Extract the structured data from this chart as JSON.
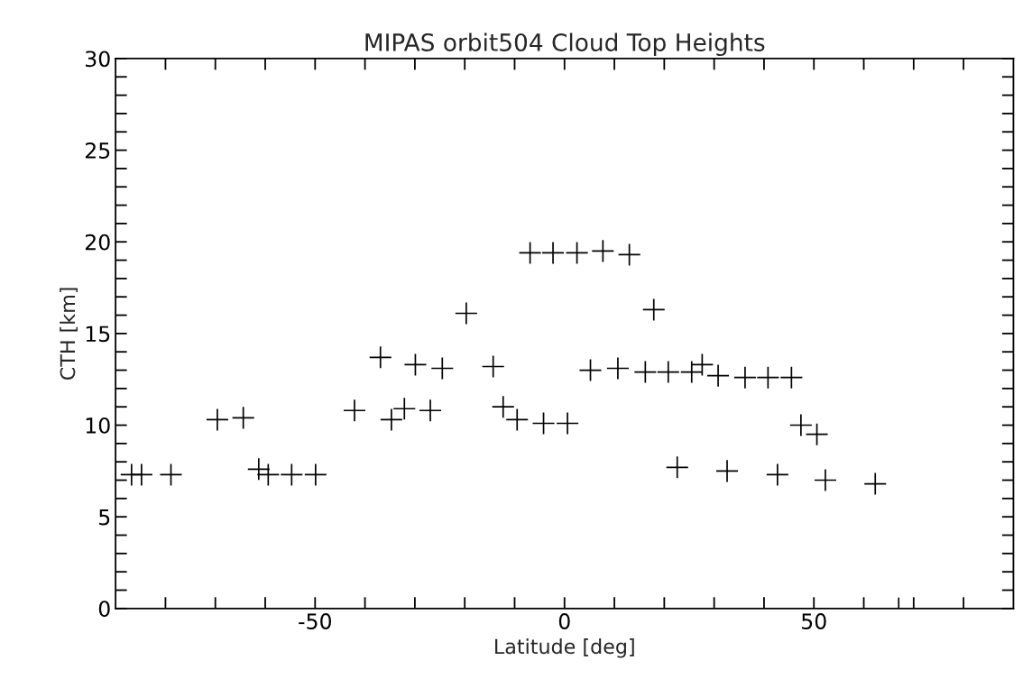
{
  "chart_data": {
    "type": "scatter",
    "title": "MIPAS orbit504 Cloud Top Heights",
    "xlabel": "Latitude [deg]",
    "ylabel": "CTH [km]",
    "marker": "cross",
    "xlim": [
      -90,
      90
    ],
    "xticks": [
      {
        "value": -80,
        "label": null
      },
      {
        "value": -70,
        "label": null
      },
      {
        "value": -60,
        "label": null
      },
      -50,
      {
        "value": -40,
        "label": null
      },
      {
        "value": -30,
        "label": null
      },
      {
        "value": -20,
        "label": null
      },
      {
        "value": -10,
        "label": null
      },
      0,
      {
        "value": 10,
        "label": null
      },
      {
        "value": 20,
        "label": null
      },
      {
        "value": 30,
        "label": null
      },
      {
        "value": 40,
        "label": null
      },
      50,
      {
        "value": 60,
        "label": null
      },
      {
        "value": 70,
        "label": null
      },
      {
        "value": 80,
        "label": null
      }
    ],
    "ylim": [
      0,
      30
    ],
    "yticks": [
      0,
      {
        "value": 1,
        "label": null
      },
      {
        "value": 2,
        "label": null
      },
      {
        "value": 3,
        "label": null
      },
      {
        "value": 4,
        "label": null
      },
      5,
      {
        "value": 6,
        "label": null
      },
      {
        "value": 7,
        "label": null
      },
      {
        "value": 8,
        "label": null
      },
      {
        "value": 9,
        "label": null
      },
      10,
      {
        "value": 11,
        "label": null
      },
      {
        "value": 12,
        "label": null
      },
      {
        "value": 13,
        "label": null
      },
      {
        "value": 14,
        "label": null
      },
      15,
      {
        "value": 16,
        "label": null
      },
      {
        "value": 17,
        "label": null
      },
      {
        "value": 18,
        "label": null
      },
      {
        "value": 19,
        "label": null
      },
      20,
      {
        "value": 21,
        "label": null
      },
      {
        "value": 22,
        "label": null
      },
      {
        "value": 23,
        "label": null
      },
      {
        "value": 24,
        "label": null
      },
      25,
      {
        "value": 26,
        "label": null
      },
      {
        "value": 27,
        "label": null
      },
      {
        "value": 28,
        "label": null
      },
      {
        "value": 29,
        "label": null
      },
      30
    ],
    "series": [
      {
        "color": "#000000",
        "x": [
          -86.8,
          -84.8,
          -78.9,
          -69.6,
          -64.4,
          -61.3,
          -59.4,
          -54.7,
          -49.9,
          -42.1,
          -36.9,
          -34.7,
          -32.1,
          -29.9,
          -26.9,
          -24.5,
          -19.7,
          -14.3,
          -12.3,
          -9.5,
          -6.9,
          -4.2,
          -2.3,
          0.6,
          2.5,
          5.2,
          7.7,
          10.7,
          13.0,
          16.2,
          17.9,
          20.8,
          22.6,
          25.5,
          27.6,
          30.8,
          32.6,
          36.2,
          40.8,
          42.7,
          45.5,
          47.4,
          50.6,
          52.3,
          62.3,
          67.0
        ],
        "values": [
          7.3,
          7.3,
          7.3,
          10.3,
          10.4,
          7.6,
          7.3,
          7.3,
          7.3,
          10.8,
          13.7,
          10.3,
          10.9,
          13.3,
          10.8,
          13.1,
          16.1,
          13.2,
          11.0,
          10.3,
          19.4,
          10.1,
          19.4,
          10.1,
          19.4,
          13.0,
          19.5,
          13.1,
          19.3,
          12.9,
          16.3,
          12.9,
          7.7,
          12.9,
          13.3,
          12.7,
          7.5,
          12.6,
          12.6,
          7.3,
          12.6,
          10.0,
          9.5,
          7.0,
          6.8,
          0
        ]
      }
    ]
  }
}
